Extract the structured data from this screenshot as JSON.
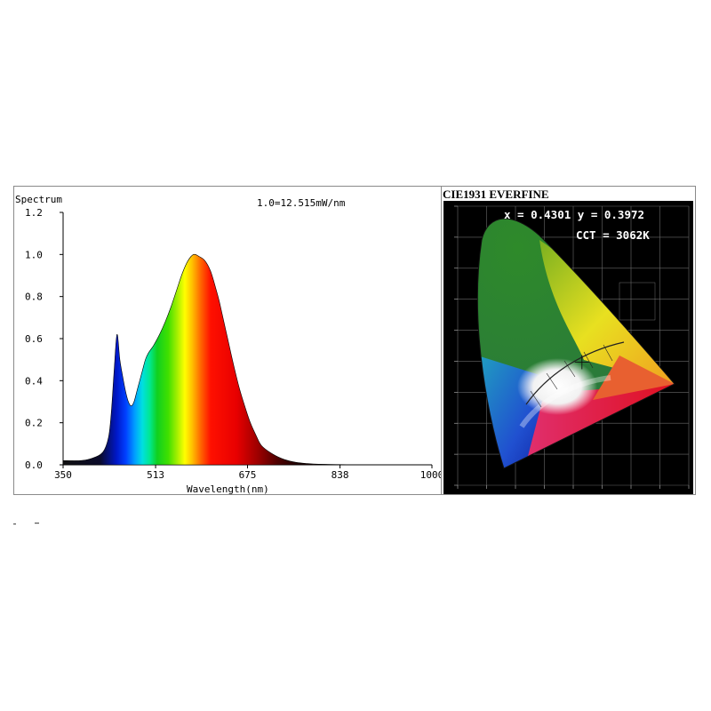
{
  "chart_data": [
    {
      "type": "area",
      "title": "Spectrum",
      "annotation": "1.0=12.515mW/nm",
      "xlabel": "Wavelength(nm)",
      "ylabel": "",
      "xlim": [
        350,
        1000
      ],
      "ylim": [
        0,
        1.2
      ],
      "x_ticks": [
        "350",
        "513",
        "675",
        "838",
        "1000"
      ],
      "y_ticks": [
        "0.0",
        "0.2",
        "0.4",
        "0.6",
        "0.8",
        "1.0",
        "1.2"
      ],
      "fill": "visible-spectrum gradient",
      "x": [
        350,
        380,
        400,
        420,
        430,
        435,
        440,
        445,
        450,
        455,
        460,
        465,
        470,
        475,
        480,
        485,
        490,
        495,
        500,
        505,
        510,
        520,
        530,
        540,
        550,
        560,
        570,
        580,
        590,
        600,
        610,
        620,
        625,
        630,
        635,
        640,
        650,
        660,
        670,
        680,
        690,
        700,
        720,
        740,
        760,
        780,
        800,
        850,
        900,
        950,
        1000
      ],
      "values": [
        0.02,
        0.02,
        0.03,
        0.06,
        0.13,
        0.25,
        0.45,
        0.62,
        0.5,
        0.42,
        0.35,
        0.3,
        0.28,
        0.3,
        0.35,
        0.4,
        0.45,
        0.5,
        0.53,
        0.55,
        0.57,
        0.62,
        0.68,
        0.75,
        0.83,
        0.91,
        0.97,
        1.0,
        0.99,
        0.97,
        0.92,
        0.83,
        0.78,
        0.72,
        0.66,
        0.6,
        0.48,
        0.37,
        0.28,
        0.2,
        0.14,
        0.09,
        0.05,
        0.025,
        0.012,
        0.006,
        0.003,
        0.001,
        0.0,
        0.0,
        0.0
      ]
    },
    {
      "type": "scatter",
      "title": "CIE1931 EVERFINE",
      "readout": "x = 0.4301 y = 0.3972",
      "cct": "CCT = 3062K",
      "x": [
        0.4301
      ],
      "y": [
        0.3972
      ]
    }
  ]
}
